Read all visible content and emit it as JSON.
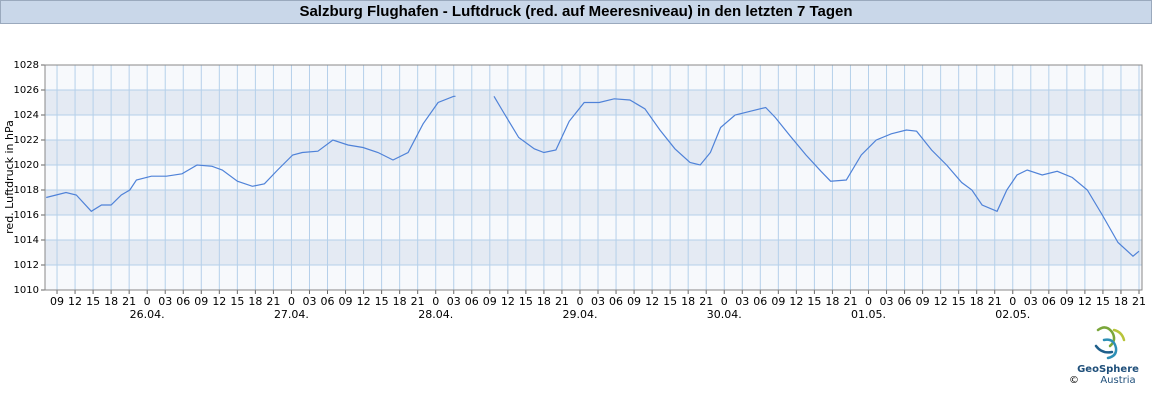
{
  "chart_data": {
    "type": "line",
    "title": "Salzburg Flughafen - Luftdruck (red. auf Meeresniveau) in den letzten 7 Tagen",
    "y_label": "red. Luftdruck in hPa",
    "color": "#4f82d8",
    "band_color": "#e4eaf3",
    "grid": true,
    "x": [
      7.2,
      10.5,
      12.2,
      14.7,
      16.4,
      18.0,
      19.7,
      21.1,
      22.2,
      24.7,
      27.2,
      29.8,
      32.3,
      34.8,
      36.5,
      39.0,
      41.5,
      43.5,
      45.7,
      48.2,
      49.8,
      52.4,
      54.9,
      57.4,
      59.9,
      62.4,
      64.9,
      67.4,
      69.9,
      72.4,
      75.0,
      75.3,
      78,
      81.7,
      83.3,
      85.8,
      88.4,
      90.0,
      92.0,
      94.2,
      96.7,
      99.2,
      101.7,
      104.3,
      106.8,
      109.3,
      111.8,
      114.3,
      116.0,
      117.7,
      119.4,
      121.8,
      124.3,
      126.9,
      128.5,
      131.0,
      133.6,
      136.1,
      137.7,
      140.3,
      142.8,
      145.3,
      147.8,
      150.3,
      152.0,
      154.5,
      157.0,
      159.5,
      161.2,
      162.9,
      165.4,
      167.0,
      168.7,
      170.4,
      172.9,
      175.4,
      177.9,
      180.4,
      182.9,
      185.5,
      188.0,
      189.0
    ],
    "values": [
      1017.4,
      1017.8,
      1017.6,
      1016.3,
      1016.8,
      1016.8,
      1017.6,
      1018.0,
      1018.8,
      1019.1,
      1019.1,
      1019.3,
      1020.0,
      1019.9,
      1019.6,
      1018.7,
      1018.3,
      1018.5,
      1019.6,
      1020.8,
      1021.0,
      1021.1,
      1022.0,
      1021.6,
      1021.4,
      1021.0,
      1020.4,
      1021.0,
      1023.3,
      1025.0,
      1025.5,
      1025.5,
      null,
      1025.5,
      1024.2,
      1022.2,
      1021.3,
      1021.0,
      1021.2,
      1023.5,
      1025.0,
      1025.0,
      1025.3,
      1025.2,
      1024.5,
      1022.8,
      1021.3,
      1020.2,
      1020.0,
      1021.0,
      1023.0,
      1024.0,
      1024.3,
      1024.6,
      1023.8,
      1022.3,
      1020.8,
      1019.5,
      1018.7,
      1018.8,
      1020.8,
      1022.0,
      1022.5,
      1022.8,
      1022.7,
      1021.2,
      1020.0,
      1018.6,
      1018.0,
      1016.8,
      1016.3,
      1018.0,
      1019.2,
      1019.6,
      1019.2,
      1019.5,
      1019.0,
      1018.0,
      1016.0,
      1013.8,
      1012.7,
      1013.1
    ],
    "xlim": [
      7,
      189.5
    ],
    "ylim": [
      1010,
      1028
    ],
    "yticks": [
      1010,
      1012,
      1014,
      1016,
      1018,
      1020,
      1022,
      1024,
      1026,
      1028
    ],
    "xticks": [
      {
        "value": 9,
        "label": "09"
      },
      {
        "value": 12,
        "label": "12"
      },
      {
        "value": 15,
        "label": "15"
      },
      {
        "value": 18,
        "label": "18"
      },
      {
        "value": 21,
        "label": "21"
      },
      {
        "value": 24,
        "label": "0"
      },
      {
        "value": 27,
        "label": "03"
      },
      {
        "value": 30,
        "label": "06"
      },
      {
        "value": 33,
        "label": "09"
      },
      {
        "value": 36,
        "label": "12"
      },
      {
        "value": 39,
        "label": "15"
      },
      {
        "value": 42,
        "label": "18"
      },
      {
        "value": 45,
        "label": "21"
      },
      {
        "value": 48,
        "label": "0"
      },
      {
        "value": 51,
        "label": "03"
      },
      {
        "value": 54,
        "label": "06"
      },
      {
        "value": 57,
        "label": "09"
      },
      {
        "value": 60,
        "label": "12"
      },
      {
        "value": 63,
        "label": "15"
      },
      {
        "value": 66,
        "label": "18"
      },
      {
        "value": 69,
        "label": "21"
      },
      {
        "value": 72,
        "label": "0"
      },
      {
        "value": 75,
        "label": "03"
      },
      {
        "value": 78,
        "label": "06"
      },
      {
        "value": 81,
        "label": "09"
      },
      {
        "value": 84,
        "label": "12"
      },
      {
        "value": 87,
        "label": "15"
      },
      {
        "value": 90,
        "label": "18"
      },
      {
        "value": 93,
        "label": "21"
      },
      {
        "value": 96,
        "label": "0"
      },
      {
        "value": 99,
        "label": "03"
      },
      {
        "value": 102,
        "label": "06"
      },
      {
        "value": 105,
        "label": "09"
      },
      {
        "value": 108,
        "label": "12"
      },
      {
        "value": 111,
        "label": "15"
      },
      {
        "value": 114,
        "label": "18"
      },
      {
        "value": 117,
        "label": "21"
      },
      {
        "value": 120,
        "label": "0"
      },
      {
        "value": 123,
        "label": "03"
      },
      {
        "value": 126,
        "label": "06"
      },
      {
        "value": 129,
        "label": "09"
      },
      {
        "value": 132,
        "label": "12"
      },
      {
        "value": 135,
        "label": "15"
      },
      {
        "value": 138,
        "label": "18"
      },
      {
        "value": 141,
        "label": "21"
      },
      {
        "value": 144,
        "label": "0"
      },
      {
        "value": 147,
        "label": "03"
      },
      {
        "value": 150,
        "label": "06"
      },
      {
        "value": 153,
        "label": "09"
      },
      {
        "value": 156,
        "label": "12"
      },
      {
        "value": 159,
        "label": "15"
      },
      {
        "value": 162,
        "label": "18"
      },
      {
        "value": 165,
        "label": "21"
      },
      {
        "value": 168,
        "label": "0"
      },
      {
        "value": 171,
        "label": "03"
      },
      {
        "value": 174,
        "label": "06"
      },
      {
        "value": 177,
        "label": "09"
      },
      {
        "value": 180,
        "label": "12"
      },
      {
        "value": 183,
        "label": "15"
      },
      {
        "value": 186,
        "label": "18"
      },
      {
        "value": 189,
        "label": "21"
      }
    ],
    "date_ticks": [
      {
        "value": 24,
        "label": "26.04."
      },
      {
        "value": 48,
        "label": "27.04."
      },
      {
        "value": 72,
        "label": "28.04."
      },
      {
        "value": 96,
        "label": "29.04."
      },
      {
        "value": 120,
        "label": "30.04."
      },
      {
        "value": 144,
        "label": "01.05."
      },
      {
        "value": 168,
        "label": "02.05."
      }
    ]
  },
  "logo": {
    "name": "GeoSphere",
    "sub": "Austria",
    "copyright": "©"
  }
}
